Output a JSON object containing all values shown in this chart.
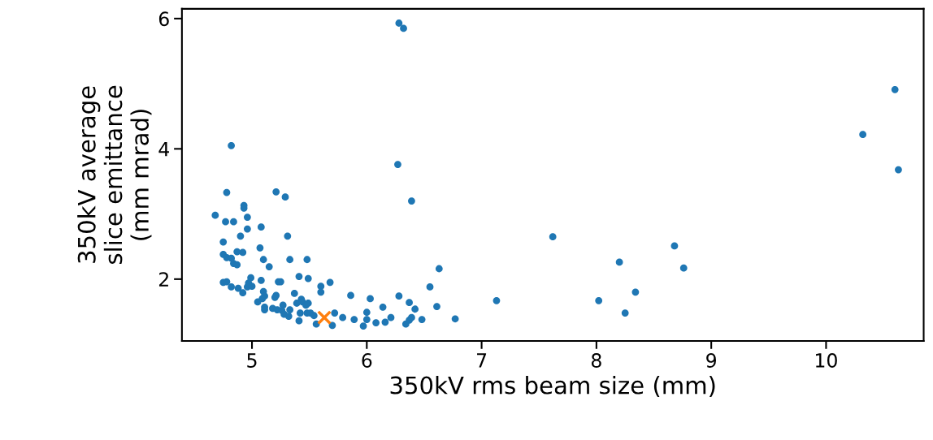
{
  "chart_data": {
    "type": "scatter",
    "xlabel": "350kV rms beam size (mm)",
    "ylabel": "350kV average\nslice emittance\n(mm mrad)",
    "xlim": [
      4.39,
      10.85
    ],
    "ylim": [
      1.05,
      6.15
    ],
    "xticks": [
      5,
      6,
      7,
      8,
      9,
      10
    ],
    "yticks": [
      2,
      4,
      6
    ],
    "series": [
      {
        "color": "#1f77b4",
        "marker": "circle",
        "x": [
          7.13,
          7.62,
          8.02,
          8.2,
          8.25,
          8.34,
          8.68,
          8.76,
          10.32,
          10.6,
          10.63,
          6.28,
          6.32,
          4.82,
          6.27,
          4.78,
          5.21,
          6.39,
          6.63,
          5.68,
          6.55,
          5.86,
          6.03,
          6.28,
          6.37,
          6.61,
          6.42,
          6.14,
          6.0,
          5.72,
          5.79,
          5.89,
          6.0,
          6.08,
          6.16,
          6.21,
          5.97,
          6.34,
          6.37,
          6.39,
          6.48,
          6.77,
          5.7,
          5.29,
          4.93,
          4.93,
          4.68,
          4.77,
          4.84,
          4.96,
          4.96,
          5.08,
          4.9,
          5.31,
          4.75,
          5.07,
          4.87,
          4.92,
          4.75,
          4.78,
          4.82,
          5.1,
          5.33,
          5.48,
          4.84,
          4.87,
          5.15,
          4.75,
          4.78,
          4.82,
          4.88,
          4.92,
          4.99,
          4.97,
          4.96,
          5.0,
          5.08,
          5.23,
          5.25,
          5.41,
          5.49,
          5.6,
          5.6,
          5.1,
          5.11,
          5.09,
          5.05,
          5.21,
          5.2,
          5.37,
          5.43,
          5.11,
          5.11,
          5.18,
          5.22,
          5.27,
          5.26,
          5.28,
          5.32,
          5.33,
          5.39,
          5.44,
          5.47,
          5.49,
          5.42,
          5.48,
          5.51,
          5.54,
          5.41,
          5.56
        ],
        "values": [
          1.67,
          2.65,
          1.67,
          2.26,
          1.48,
          1.8,
          2.51,
          2.17,
          4.22,
          4.91,
          3.68,
          5.93,
          5.85,
          4.05,
          3.76,
          3.33,
          3.34,
          3.2,
          2.16,
          1.95,
          1.88,
          1.75,
          1.7,
          1.74,
          1.64,
          1.58,
          1.54,
          1.57,
          1.49,
          1.48,
          1.41,
          1.38,
          1.38,
          1.33,
          1.34,
          1.41,
          1.28,
          1.31,
          1.37,
          1.41,
          1.38,
          1.39,
          1.29,
          3.26,
          3.13,
          3.09,
          2.98,
          2.88,
          2.88,
          2.95,
          2.77,
          2.8,
          2.66,
          2.66,
          2.57,
          2.48,
          2.42,
          2.41,
          2.38,
          2.33,
          2.32,
          2.3,
          2.3,
          2.3,
          2.24,
          2.22,
          2.19,
          1.95,
          1.96,
          1.88,
          1.86,
          1.79,
          2.02,
          1.94,
          1.88,
          1.89,
          1.98,
          1.96,
          1.96,
          2.04,
          2.01,
          1.89,
          1.8,
          1.81,
          1.74,
          1.7,
          1.65,
          1.75,
          1.72,
          1.78,
          1.69,
          1.57,
          1.53,
          1.55,
          1.53,
          1.6,
          1.52,
          1.46,
          1.43,
          1.53,
          1.63,
          1.65,
          1.6,
          1.63,
          1.48,
          1.48,
          1.48,
          1.44,
          1.36,
          1.31
        ]
      },
      {
        "color": "#ff7f0e",
        "marker": "cross",
        "x": [
          5.63
        ],
        "values": [
          1.41
        ]
      }
    ]
  }
}
